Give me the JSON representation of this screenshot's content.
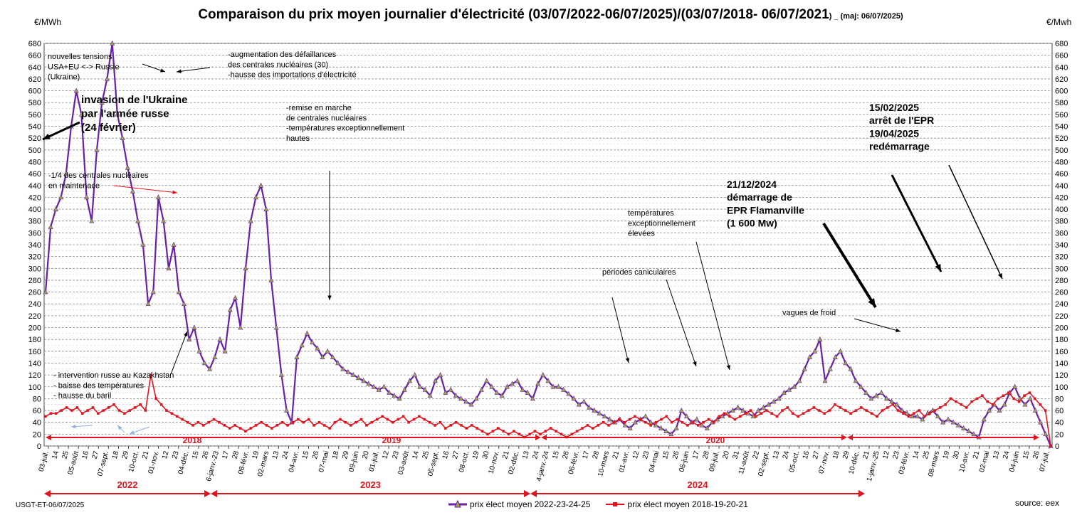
{
  "header": {
    "title": "Comparaison du prix moyen journalier d'électricité (03/07/2022-06/07/2025)/(03/07/2018-  06/07/2021",
    "title_suffix": ") _ (maj:  06/07/2025)",
    "unit_left": "€/MWh",
    "unit_right": "€/Mwh"
  },
  "footer": {
    "source": "source: eex",
    "author_stamp": "USGT-ET-06/07/2025"
  },
  "colors": {
    "series_2022": "#6a1fa8",
    "series_2022_marker": "#9aa84a",
    "series_2018": "#e0141e",
    "grid": "#8c8c8c",
    "year_labels": "#e0141e",
    "annotations": "#000000"
  },
  "chart_data": {
    "type": "line",
    "ylim": [
      0,
      680
    ],
    "ystep": 20,
    "yticks": [
      "0",
      "20",
      "40",
      "60",
      "80",
      "100",
      "120",
      "140",
      "160",
      "180",
      "200",
      "220",
      "240",
      "260",
      "280",
      "300",
      "320",
      "340",
      "360",
      "380",
      "400",
      "420",
      "440",
      "460",
      "480",
      "500",
      "520",
      "540",
      "560",
      "580",
      "600",
      "620",
      "640",
      "660",
      "680"
    ],
    "x_tick_labels": [
      "03-juil.",
      "14",
      "25",
      "05-août",
      "16",
      "27",
      "07-sept.",
      "18",
      "29",
      "10-oct.",
      "21",
      "01-nov.",
      "12",
      "23",
      "04-déc.",
      "15",
      "26",
      "6-janv.-23",
      "17",
      "28",
      "08-févr.",
      "19",
      "02-mars",
      "13",
      "24",
      "04-avr.",
      "15",
      "26",
      "07-mai",
      "18",
      "29",
      "09-juin",
      "20",
      "01-juil.",
      "12",
      "23",
      "03-août",
      "14",
      "25",
      "05-sept.",
      "16",
      "27",
      "08-oct.",
      "19",
      "30",
      "10-nov.",
      "21",
      "02-déc.",
      "13",
      "24",
      "4-janv.-24",
      "15",
      "26",
      "06-févr.",
      "17",
      "28",
      "10-mars",
      "21",
      "01-avr.",
      "12",
      "23",
      "04-mai",
      "15",
      "26",
      "06-juin",
      "17",
      "28",
      "09-juil.",
      "20",
      "31",
      "11-août",
      "22",
      "02-sept.",
      "13",
      "24",
      "05-oct.",
      "16",
      "27",
      "07-nov.",
      "18",
      "29",
      "10-déc.",
      "21",
      "1-janv.-25",
      "12",
      "23",
      "03-févr.",
      "14",
      "25",
      "08-mars",
      "19",
      "30",
      "10-avr.",
      "21",
      "02-mai",
      "13",
      "24",
      "04-juin",
      "15",
      "26",
      "07-juil."
    ],
    "series": [
      {
        "name": "prix élect moyen 2022-23-24-25",
        "values": [
          260,
          370,
          400,
          420,
          460,
          540,
          600,
          560,
          420,
          380,
          500,
          580,
          620,
          680,
          560,
          520,
          470,
          430,
          380,
          340,
          240,
          260,
          420,
          380,
          300,
          340,
          260,
          240,
          180,
          200,
          160,
          140,
          130,
          150,
          180,
          160,
          230,
          250,
          200,
          300,
          380,
          420,
          440,
          400,
          280,
          200,
          120,
          60,
          40,
          150,
          170,
          190,
          175,
          165,
          150,
          160,
          150,
          140,
          130,
          125,
          120,
          115,
          110,
          105,
          100,
          95,
          100,
          90,
          85,
          80,
          95,
          110,
          120,
          100,
          95,
          85,
          110,
          120,
          90,
          95,
          85,
          80,
          75,
          70,
          80,
          95,
          110,
          100,
          90,
          85,
          100,
          105,
          110,
          95,
          90,
          80,
          105,
          120,
          110,
          100,
          100,
          95,
          88,
          80,
          70,
          75,
          65,
          60,
          55,
          50,
          45,
          40,
          45,
          35,
          30,
          40,
          45,
          50,
          40,
          35,
          30,
          25,
          20,
          30,
          60,
          50,
          40,
          45,
          35,
          30,
          40,
          45,
          50,
          55,
          60,
          65,
          60,
          55,
          50,
          60,
          65,
          70,
          75,
          80,
          90,
          95,
          100,
          110,
          130,
          150,
          160,
          180,
          110,
          130,
          150,
          160,
          140,
          130,
          110,
          100,
          90,
          80,
          85,
          90,
          80,
          75,
          70,
          60,
          55,
          50,
          50,
          45,
          55,
          60,
          50,
          40,
          45,
          40,
          35,
          30,
          25,
          20,
          15,
          45,
          60,
          70,
          60,
          70,
          90,
          100,
          80,
          70,
          80,
          60,
          40,
          20,
          0
        ],
        "markers": "triangle"
      },
      {
        "name": "prix élect moyen 2018-19-20-21",
        "values": [
          50,
          55,
          55,
          60,
          65,
          60,
          65,
          55,
          60,
          65,
          55,
          60,
          65,
          70,
          60,
          55,
          60,
          65,
          70,
          60,
          120,
          80,
          70,
          60,
          55,
          50,
          45,
          40,
          35,
          40,
          35,
          40,
          45,
          40,
          35,
          30,
          35,
          30,
          25,
          30,
          35,
          40,
          35,
          30,
          35,
          40,
          35,
          40,
          45,
          40,
          45,
          35,
          40,
          35,
          30,
          40,
          45,
          40,
          35,
          40,
          45,
          35,
          40,
          45,
          50,
          45,
          40,
          45,
          50,
          40,
          45,
          50,
          45,
          40,
          35,
          40,
          30,
          35,
          40,
          35,
          30,
          35,
          30,
          25,
          20,
          25,
          30,
          25,
          20,
          25,
          20,
          15,
          20,
          25,
          20,
          25,
          30,
          25,
          20,
          15,
          20,
          25,
          30,
          35,
          30,
          35,
          40,
          35,
          40,
          45,
          40,
          45,
          50,
          45,
          40,
          35,
          40,
          45,
          50,
          40,
          45,
          40,
          35,
          40,
          35,
          40,
          45,
          40,
          50,
          55,
          50,
          45,
          50,
          55,
          60,
          50,
          55,
          60,
          55,
          50,
          60,
          65,
          55,
          50,
          55,
          60,
          65,
          60,
          55,
          60,
          70,
          65,
          60,
          55,
          60,
          65,
          60,
          55,
          50,
          60,
          65,
          70,
          60,
          55,
          50,
          55,
          60,
          50,
          55,
          60,
          65,
          70,
          80,
          75,
          70,
          65,
          75,
          80,
          85,
          75,
          70,
          80,
          85,
          90,
          80,
          75,
          85,
          90,
          80,
          70,
          60,
          0
        ]
      }
    ],
    "year_labels_top": [
      "2018",
      "2019",
      "2020"
    ],
    "year_labels_bottom": [
      "2022",
      "2023",
      "2024"
    ],
    "annotations": [
      {
        "id": "ukraine",
        "text": "invasion de l'Ukraine\npar l'armée russe\n(24 février)",
        "bold": true
      },
      {
        "id": "tensions",
        "text": "nouvelles tensions\nUSA+EU <-> Russie\n(Ukraine)"
      },
      {
        "id": "defaillances",
        "text": "-augmentation des défaillances\ndes centrales nucléaires (30)\n-hausse des importations d'électricité"
      },
      {
        "id": "maintenance",
        "text": "-1/4 des centrales nucléaires\nen maintenace"
      },
      {
        "id": "remise",
        "text": "-remise en marche\nde centrales nucléaires\n-températures exceptionnellement\nhautes"
      },
      {
        "id": "kazakhstan",
        "text": "- intervention russe au Kazakhstan\n- baisse des températures\n- hausse du baril"
      },
      {
        "id": "temperatures",
        "text": "températures\nexceptionnellement\nélevées"
      },
      {
        "id": "canicule",
        "text": "périodes caniculaires"
      },
      {
        "id": "epr_demarrage",
        "text": "21/12/2024\ndémarrage de\nEPR Flamanville\n(1 600 Mw)",
        "bold": true
      },
      {
        "id": "epr_arret",
        "text": "15/02/2025\narrêt de l'EPR\n19/04/2025\nredémarrage",
        "bold": true
      },
      {
        "id": "froid",
        "text": "vagues de froid"
      }
    ]
  }
}
